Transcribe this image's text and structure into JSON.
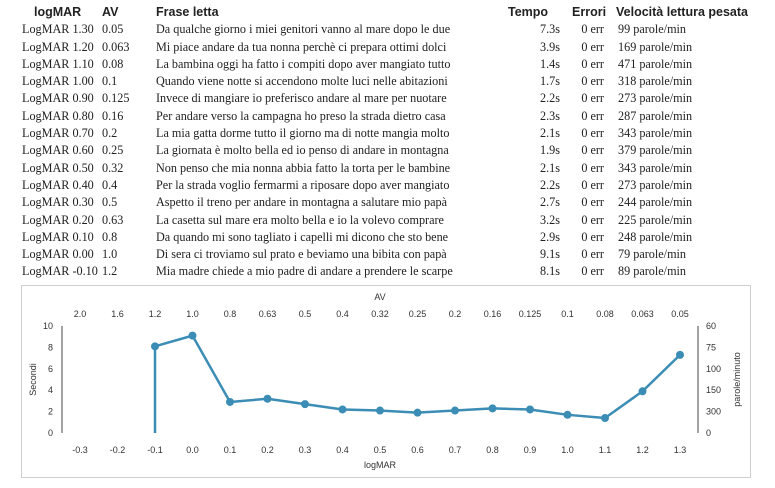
{
  "table": {
    "headers": {
      "logmar": "logMAR",
      "av": "AV",
      "frase": "Frase letta",
      "tempo": "Tempo",
      "errori": "Errori",
      "velocita": "Velocità lettura pesata"
    },
    "rows": [
      {
        "logmar": "LogMAR  1.30",
        "av": "0.05",
        "frase": "Da qualche giorno i miei genitori vanno al mare dopo le due",
        "tempo": "7.3s",
        "errori": "0 err",
        "velocita": "99 parole/min"
      },
      {
        "logmar": "LogMAR  1.20",
        "av": "0.063",
        "frase": "Mi piace andare da tua nonna perchè ci prepara ottimi dolci",
        "tempo": "3.9s",
        "errori": "0 err",
        "velocita": "169 parole/min"
      },
      {
        "logmar": "LogMAR  1.10",
        "av": "0.08",
        "frase": "La bambina oggi ha fatto i compiti dopo aver mangiato tutto",
        "tempo": "1.4s",
        "errori": "0 err",
        "velocita": "471 parole/min"
      },
      {
        "logmar": "LogMAR  1.00",
        "av": "0.1",
        "frase": "Quando viene notte si accendono molte luci nelle abitazioni",
        "tempo": "1.7s",
        "errori": "0 err",
        "velocita": "318 parole/min"
      },
      {
        "logmar": "LogMAR  0.90",
        "av": "0.125",
        "frase": "Invece di mangiare io preferisco andare al mare per nuotare",
        "tempo": "2.2s",
        "errori": "0 err",
        "velocita": "273 parole/min"
      },
      {
        "logmar": "LogMAR  0.80",
        "av": "0.16",
        "frase": "Per andare verso la campagna ho preso la strada dietro casa",
        "tempo": "2.3s",
        "errori": "0 err",
        "velocita": "287 parole/min"
      },
      {
        "logmar": "LogMAR  0.70",
        "av": "0.2",
        "frase": "La mia gatta dorme tutto il giorno ma di notte mangia molto",
        "tempo": "2.1s",
        "errori": "0 err",
        "velocita": "343 parole/min"
      },
      {
        "logmar": "LogMAR  0.60",
        "av": "0.25",
        "frase": "La giornata è molto bella ed io penso di andare in montagna",
        "tempo": "1.9s",
        "errori": "0 err",
        "velocita": "379 parole/min"
      },
      {
        "logmar": "LogMAR  0.50",
        "av": "0.32",
        "frase": "Non penso che mia nonna abbia fatto la torta per le bambine",
        "tempo": "2.1s",
        "errori": "0 err",
        "velocita": "343 parole/min"
      },
      {
        "logmar": "LogMAR  0.40",
        "av": "0.4",
        "frase": "Per la strada voglio fermarmi a riposare dopo aver mangiato",
        "tempo": "2.2s",
        "errori": "0 err",
        "velocita": "273 parole/min"
      },
      {
        "logmar": "LogMAR  0.30",
        "av": "0.5",
        "frase": "Aspetto il treno per andare in montagna a salutare mio papà",
        "tempo": "2.7s",
        "errori": "0 err",
        "velocita": "244 parole/min"
      },
      {
        "logmar": "LogMAR  0.20",
        "av": "0.63",
        "frase": "La casetta sul mare era molto bella e io la volevo comprare",
        "tempo": "3.2s",
        "errori": "0 err",
        "velocita": "225 parole/min"
      },
      {
        "logmar": "LogMAR  0.10",
        "av": "0.8",
        "frase": "Da quando mi sono tagliato i capelli mi dicono che sto bene",
        "tempo": "2.9s",
        "errori": "0 err",
        "velocita": "248 parole/min"
      },
      {
        "logmar": "LogMAR  0.00",
        "av": "1.0",
        "frase": "Di sera ci troviamo sul prato e beviamo una bibita con papà",
        "tempo": "9.1s",
        "errori": "0 err",
        "velocita": "79 parole/min"
      },
      {
        "logmar": "LogMAR -0.10",
        "av": "1.2",
        "frase": "Mia madre chiede a mio padre di andare a prendere le scarpe",
        "tempo": "8.1s",
        "errori": "0 err",
        "velocita": "89 parole/min"
      }
    ]
  },
  "chart_data": {
    "type": "line",
    "xlabel": "logMAR",
    "x2label": "AV",
    "ylabel": "Secondi",
    "y2label": "parole/minuto",
    "x_ticks": [
      "-0.3",
      "-0.2",
      "-0.1",
      "0.0",
      "0.1",
      "0.2",
      "0.3",
      "0.4",
      "0.5",
      "0.6",
      "0.7",
      "0.8",
      "0.9",
      "1.0",
      "1.1",
      "1.2",
      "1.3"
    ],
    "x2_ticks": [
      "2.0",
      "1.6",
      "1.2",
      "1.0",
      "0.8",
      "0.63",
      "0.5",
      "0.4",
      "0.32",
      "0.25",
      "0.2",
      "0.16",
      "0.125",
      "0.1",
      "0.08",
      "0.063",
      "0.05"
    ],
    "y_ticks": [
      "0",
      "2",
      "4",
      "6",
      "8",
      "10"
    ],
    "y2_ticks": [
      "0",
      "300",
      "150",
      "100",
      "75",
      "60"
    ],
    "ylim": [
      0,
      10
    ],
    "x": [
      -0.1,
      0.0,
      0.1,
      0.2,
      0.3,
      0.4,
      0.5,
      0.6,
      0.7,
      0.8,
      0.9,
      1.0,
      1.1,
      1.2,
      1.3
    ],
    "series": [
      {
        "values": [
          8.1,
          9.1,
          2.9,
          3.2,
          2.7,
          2.2,
          2.1,
          1.9,
          2.1,
          2.3,
          2.2,
          1.7,
          1.4,
          3.9,
          7.3
        ]
      }
    ],
    "color": "#3b8db5",
    "grid": false
  }
}
